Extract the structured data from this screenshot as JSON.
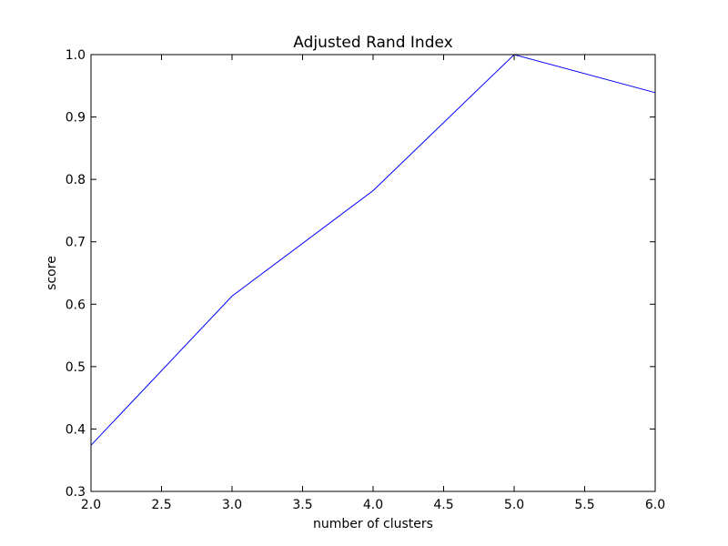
{
  "chart_data": {
    "type": "line",
    "title": "Adjusted Rand Index",
    "xlabel": "number of clusters",
    "ylabel": "score",
    "xlim": [
      2.0,
      6.0
    ],
    "ylim": [
      0.3,
      1.0
    ],
    "xticks": [
      "2.0",
      "2.5",
      "3.0",
      "3.5",
      "4.0",
      "4.5",
      "5.0",
      "5.5",
      "6.0"
    ],
    "yticks": [
      "0.3",
      "0.4",
      "0.5",
      "0.6",
      "0.7",
      "0.8",
      "0.9",
      "1.0"
    ],
    "grid": false,
    "series": [
      {
        "color": "#0000ff",
        "x": [
          2,
          3,
          4,
          5,
          6
        ],
        "y": [
          0.374,
          0.613,
          0.782,
          1.0,
          0.939
        ]
      }
    ]
  }
}
